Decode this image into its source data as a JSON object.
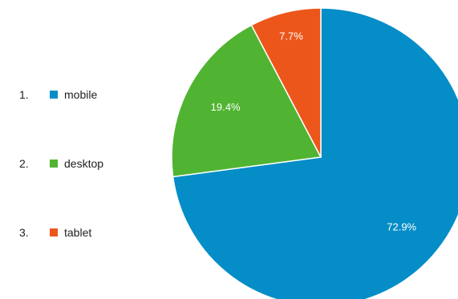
{
  "chart_data": {
    "type": "pie",
    "categories": [
      "mobile",
      "desktop",
      "tablet"
    ],
    "values": [
      72.9,
      19.4,
      7.7
    ],
    "labels": [
      "72.9%",
      "19.4%",
      "7.7%"
    ],
    "colors": [
      "#058dc7",
      "#50b432",
      "#ed561b"
    ],
    "legend": {
      "placement": "left",
      "items": [
        {
          "index": "1.",
          "label": "mobile",
          "color": "#058dc7"
        },
        {
          "index": "2.",
          "label": "desktop",
          "color": "#50b432"
        },
        {
          "index": "3.",
          "label": "tablet",
          "color": "#ed561b"
        }
      ]
    }
  }
}
